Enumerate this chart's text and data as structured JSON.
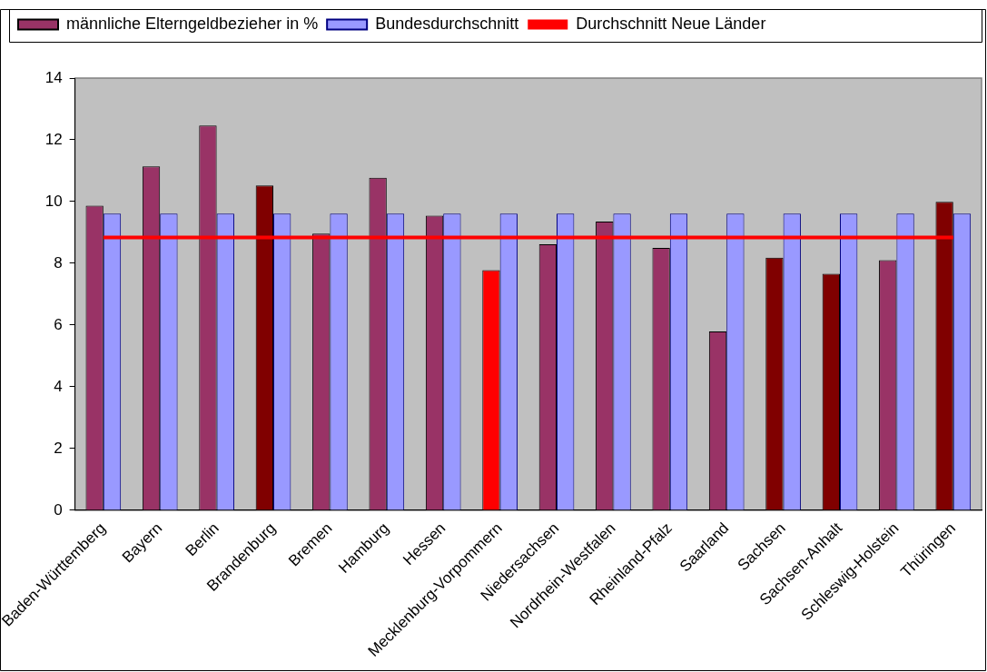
{
  "chart_data": {
    "type": "bar",
    "categories": [
      "Baden-Württemberg",
      "Bayern",
      "Berlin",
      "Brandenburg",
      "Bremen",
      "Hamburg",
      "Hessen",
      "Mecklenburg-Vorpommern",
      "Niedersachsen",
      "Nordrhein-Westfalen",
      "Rheinland-Pfalz",
      "Saarland",
      "Sachsen",
      "Sachsen-Anhalt",
      "Schleswig-Holstein",
      "Thüringen"
    ],
    "series": [
      {
        "name": "männliche Elterngeldbezieher in %",
        "color": "#993366",
        "colors": [
          "#993366",
          "#993366",
          "#993366",
          "#800000",
          "#993366",
          "#993366",
          "#993366",
          "#ff0000",
          "#993366",
          "#993366",
          "#993366",
          "#993366",
          "#800000",
          "#800000",
          "#993366",
          "#800000"
        ],
        "values": [
          9.87,
          11.14,
          12.46,
          10.52,
          8.96,
          10.77,
          9.54,
          7.78,
          8.62,
          9.35,
          8.5,
          5.79,
          8.18,
          7.66,
          8.1,
          9.99
        ]
      },
      {
        "name": "Bundesdurchschnitt",
        "color": "#9999ff",
        "values": [
          9.61,
          9.61,
          9.61,
          9.61,
          9.61,
          9.61,
          9.61,
          9.61,
          9.61,
          9.61,
          9.61,
          9.61,
          9.61,
          9.61,
          9.61,
          9.61
        ]
      },
      {
        "name": "Durchschnitt Neue Länder",
        "type": "line",
        "color": "#ff0000",
        "marker": "none",
        "values": [
          8.84,
          8.84,
          8.84,
          8.84,
          8.84,
          8.84,
          8.84,
          8.84,
          8.84,
          8.84,
          8.84,
          8.84,
          8.84,
          8.84,
          8.84,
          8.84
        ]
      }
    ],
    "ylim": [
      0,
      14
    ],
    "yticks": [
      0,
      2,
      4,
      6,
      8,
      10,
      12,
      14
    ],
    "grid": false,
    "legend": "top"
  }
}
